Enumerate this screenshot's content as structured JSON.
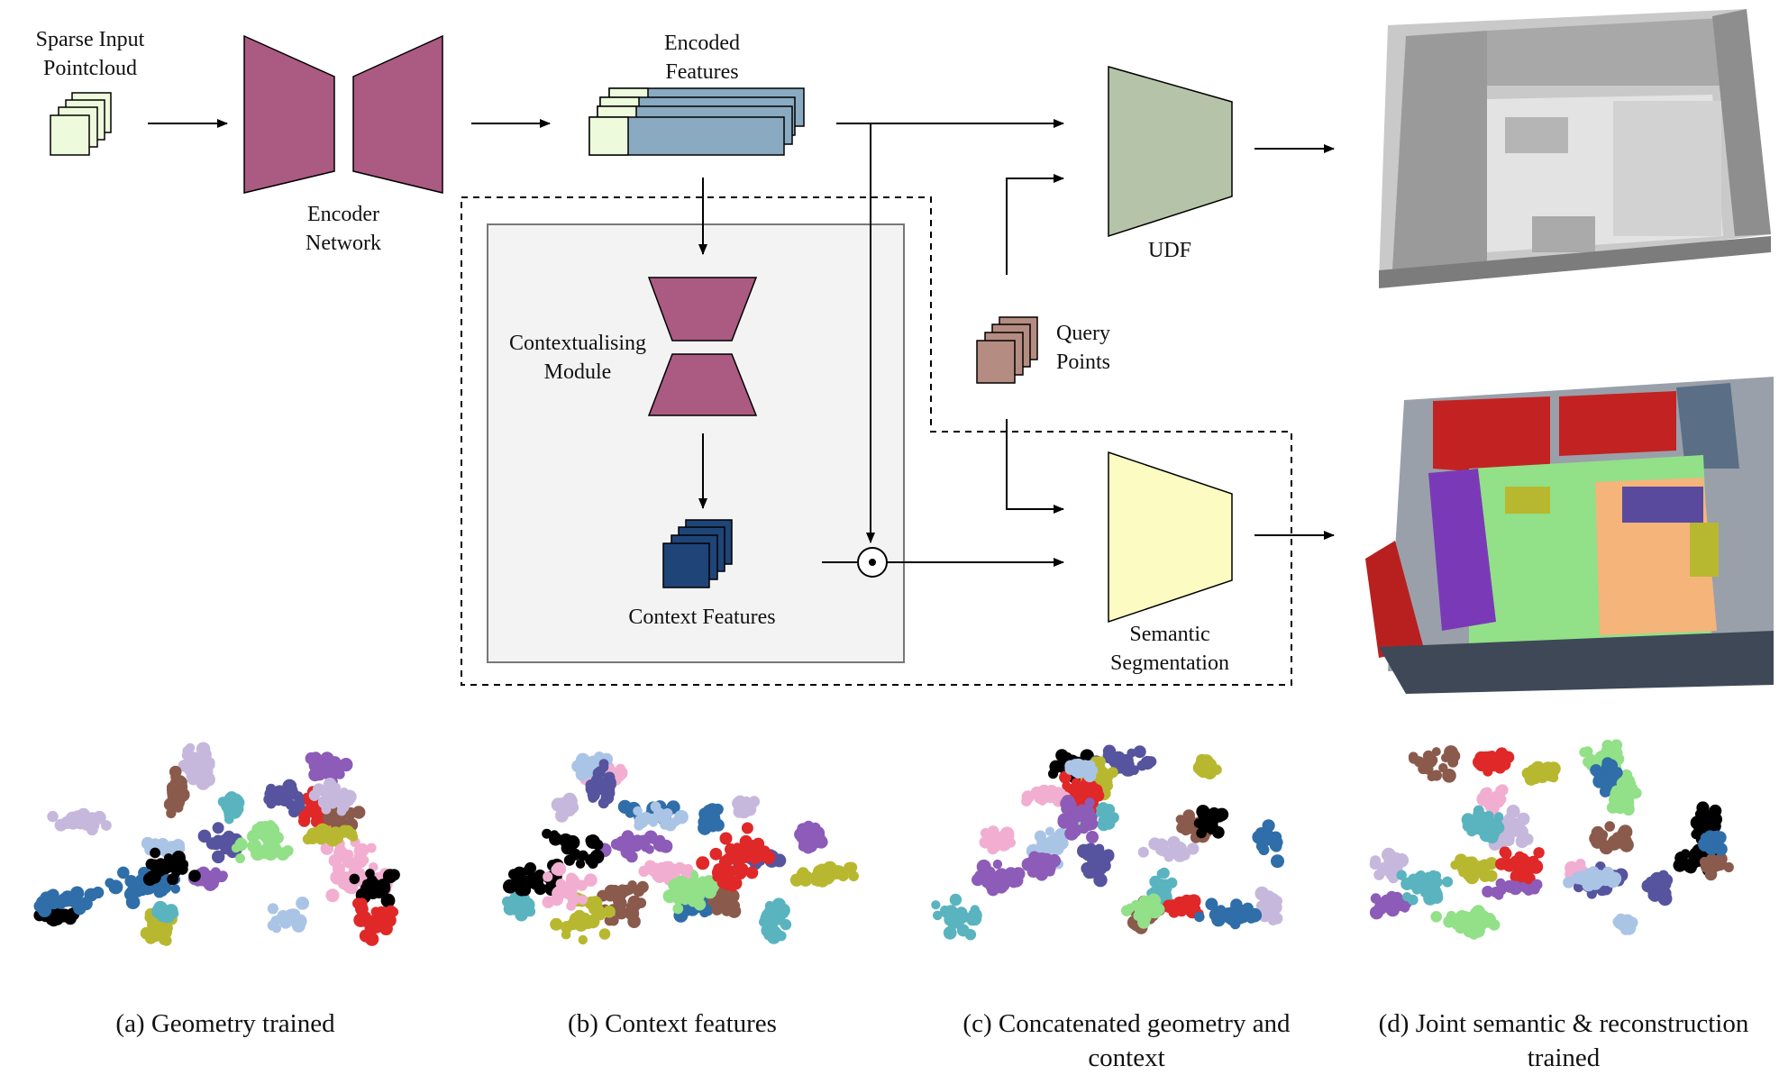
{
  "labels": {
    "sparse_input": "Sparse Input\nPointcloud",
    "encoder": "Encoder\nNetwork",
    "encoded_features": "Encoded\nFeatures",
    "udf": "UDF",
    "contextualising": "Contextualising\nModule",
    "query_points": "Query\nPoints",
    "context_features": "Context Features",
    "semantic_segmentation": "Semantic\nSegmentation"
  },
  "captions": {
    "a": "(a) Geometry trained",
    "b": "(b) Context features",
    "c": "(c) Concatenated geometry and\ncontext",
    "d": "(d) Joint semantic & reconstruction\ntrained"
  },
  "colors": {
    "encoder": "#ab5a82",
    "pointcloud": "#eefadc",
    "encoded": "#89aac0",
    "udf": "#b5c4a8",
    "seg": "#fbfbc2",
    "query": "#b58c82",
    "context": "#1f4578",
    "module_bg": "#f3f3f3"
  },
  "tsne_palette": [
    "#000000",
    "#aac4e6",
    "#92e088",
    "#f2aed0",
    "#56549e",
    "#c6b8dc",
    "#8c5cb8",
    "#b8b830",
    "#2f6ea8",
    "#8a5a4c",
    "#e02828",
    "#5ab4c0"
  ]
}
